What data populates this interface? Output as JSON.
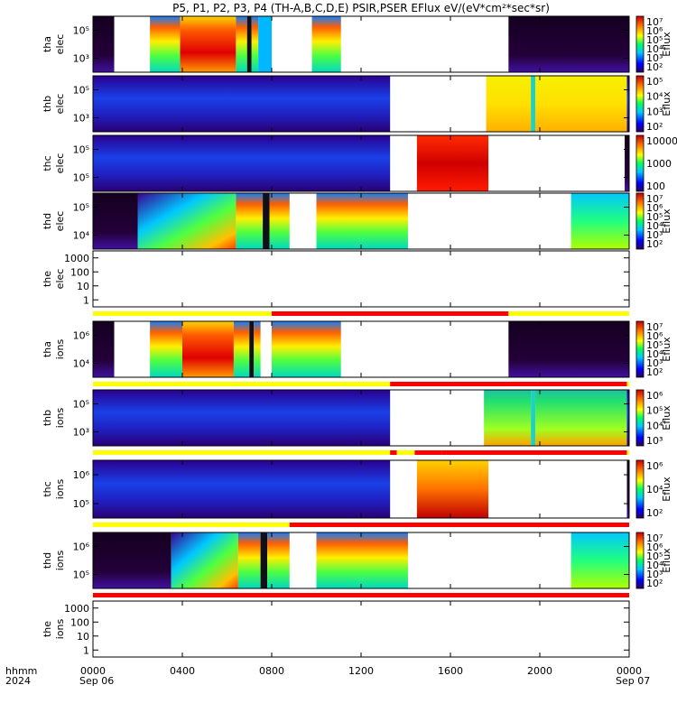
{
  "chart_data": {
    "type": "heatmap",
    "title": "P5, P1, P2, P3, P4 (TH-A,B,C,D,E) PSIR,PSER EFlux eV/(eV*cm²*sec*sr)",
    "x_axis": {
      "label_lines": [
        "hhmm",
        "2024"
      ],
      "ticks": [
        "0000",
        "0400",
        "0800",
        "1200",
        "1600",
        "2000",
        "0000"
      ],
      "tick_hours": [
        0,
        4,
        8,
        12,
        16,
        20,
        24
      ],
      "date_labels": [
        "Sep 06",
        "Sep 07"
      ],
      "range_hours": [
        0,
        24
      ]
    },
    "panels": [
      {
        "id": "tha-elec",
        "label_lines": [
          "tha",
          "elec"
        ],
        "kind": "spectrogram",
        "y_ticks": [
          "10⁵",
          "10³"
        ],
        "y_log": true,
        "colorbar": {
          "label": "Eflux",
          "ticks": [
            "10⁷",
            "10⁶",
            "10⁵",
            "10⁴",
            "10³",
            "10²"
          ]
        },
        "segments": [
          [
            0,
            0.95,
            "purple"
          ],
          [
            2.55,
            3.9,
            "warm"
          ],
          [
            3.9,
            6.4,
            "hot"
          ],
          [
            6.4,
            6.9,
            "warm"
          ],
          [
            6.9,
            7.1,
            "dark"
          ],
          [
            7.1,
            7.4,
            "warm"
          ],
          [
            7.4,
            8.0,
            "cool"
          ],
          [
            9.8,
            11.1,
            "warm"
          ],
          [
            18.6,
            24,
            "purple"
          ]
        ],
        "flag_bar": null
      },
      {
        "id": "thb-elec",
        "label_lines": [
          "thb",
          "elec"
        ],
        "kind": "spectrogram",
        "y_ticks": [
          "10⁵",
          "10³"
        ],
        "y_log": true,
        "colorbar": {
          "label": "Eflux",
          "ticks": [
            "10⁵",
            "10⁴",
            "10³",
            "10²"
          ]
        },
        "segments": [
          [
            0,
            13.3,
            "blue"
          ],
          [
            17.6,
            19.6,
            "yellow"
          ],
          [
            19.6,
            19.8,
            "cyanstripe"
          ],
          [
            19.8,
            23.9,
            "yellow"
          ],
          [
            23.9,
            24,
            "blue"
          ]
        ],
        "flag_bar": null
      },
      {
        "id": "thc-elec",
        "label_lines": [
          "thc",
          "elec"
        ],
        "kind": "spectrogram",
        "y_ticks": [
          "10⁵",
          "10⁵"
        ],
        "y_log": true,
        "colorbar": {
          "label": "",
          "ticks": [
            "10000",
            "1000",
            "100"
          ]
        },
        "segments": [
          [
            0,
            13.3,
            "blue"
          ],
          [
            14.5,
            17.7,
            "red"
          ],
          [
            23.8,
            24,
            "purple"
          ]
        ],
        "flag_bar": null
      },
      {
        "id": "thd-elec",
        "label_lines": [
          "thd",
          "elec"
        ],
        "kind": "spectrogram",
        "y_ticks": [
          "10⁵",
          "10⁴"
        ],
        "y_log": true,
        "colorbar": {
          "label": "Eflux",
          "ticks": [
            "10⁷",
            "10⁶",
            "10⁵",
            "10⁴",
            "10³",
            "10²"
          ]
        },
        "segments": [
          [
            0,
            2.0,
            "purple"
          ],
          [
            2.0,
            6.4,
            "ramp"
          ],
          [
            6.4,
            7.6,
            "warm"
          ],
          [
            7.6,
            7.9,
            "dark"
          ],
          [
            7.9,
            8.8,
            "warm"
          ],
          [
            10.0,
            14.1,
            "warm"
          ],
          [
            21.4,
            24,
            "cyangreen"
          ]
        ],
        "flag_bar": null
      },
      {
        "id": "the-elec",
        "label_lines": [
          "the",
          "elec"
        ],
        "kind": "empty",
        "y_ticks": [
          "1000",
          "100",
          "10",
          "1"
        ],
        "y_log": true,
        "colorbar": null,
        "segments": [],
        "flag_bar": [
          [
            0,
            6.4,
            "yellow"
          ],
          [
            6.4,
            8.0,
            "yellow"
          ],
          [
            8.0,
            18.6,
            "red"
          ],
          [
            18.6,
            24,
            "yellow"
          ]
        ]
      },
      {
        "id": "tha-ions",
        "label_lines": [
          "tha",
          "ions"
        ],
        "kind": "spectrogram",
        "y_ticks": [
          "10⁶",
          "10⁴"
        ],
        "y_log": true,
        "colorbar": {
          "label": "Eflux",
          "ticks": [
            "10⁷",
            "10⁶",
            "10⁵",
            "10⁴",
            "10³",
            "10²"
          ]
        },
        "segments": [
          [
            0,
            0.95,
            "purple"
          ],
          [
            2.55,
            4.0,
            "warm"
          ],
          [
            4.0,
            6.3,
            "hot"
          ],
          [
            6.3,
            7.0,
            "warm"
          ],
          [
            7.0,
            7.2,
            "dark"
          ],
          [
            7.2,
            7.5,
            "warm"
          ],
          [
            8.0,
            11.1,
            "warm"
          ],
          [
            18.6,
            24,
            "purple"
          ]
        ],
        "flag_bar": [
          [
            0,
            13.3,
            "yellow"
          ],
          [
            13.3,
            23.9,
            "red"
          ],
          [
            23.9,
            24,
            "yellow"
          ]
        ]
      },
      {
        "id": "thb-ions",
        "label_lines": [
          "thb",
          "ions"
        ],
        "kind": "spectrogram",
        "y_ticks": [
          "10⁵",
          "10³"
        ],
        "y_log": true,
        "colorbar": {
          "label": "Eflux",
          "ticks": [
            "10⁶",
            "10⁵",
            "10⁴",
            "10³"
          ]
        },
        "segments": [
          [
            0,
            13.3,
            "blue"
          ],
          [
            17.5,
            19.6,
            "greenyellow"
          ],
          [
            19.6,
            19.8,
            "cyanstripe"
          ],
          [
            19.8,
            23.9,
            "greenyellow"
          ],
          [
            23.9,
            24,
            "blue"
          ]
        ],
        "flag_bar": [
          [
            0,
            13.3,
            "yellow"
          ],
          [
            13.3,
            13.6,
            "red"
          ],
          [
            13.6,
            14.4,
            "yellow"
          ],
          [
            14.4,
            15.6,
            "red"
          ],
          [
            15.6,
            23.9,
            "red"
          ],
          [
            23.9,
            24,
            "yellow"
          ]
        ]
      },
      {
        "id": "thc-ions",
        "label_lines": [
          "thc",
          "ions"
        ],
        "kind": "spectrogram",
        "y_ticks": [
          "10⁶",
          "10⁵"
        ],
        "y_log": true,
        "colorbar": {
          "label": "Eflux",
          "ticks": [
            "10⁶",
            "10⁴",
            "10²"
          ]
        },
        "segments": [
          [
            0,
            13.3,
            "blue"
          ],
          [
            14.5,
            17.7,
            "orangered"
          ],
          [
            23.9,
            24,
            "purple"
          ]
        ],
        "flag_bar": [
          [
            0,
            8.8,
            "yellow"
          ],
          [
            8.8,
            24,
            "red"
          ]
        ]
      },
      {
        "id": "thd-ions",
        "label_lines": [
          "thd",
          "ions"
        ],
        "kind": "spectrogram",
        "y_ticks": [
          "10⁶",
          "10⁵"
        ],
        "y_log": true,
        "colorbar": {
          "label": "Eflux",
          "ticks": [
            "10⁷",
            "10⁶",
            "10⁵",
            "10⁴",
            "10³",
            "10²"
          ]
        },
        "segments": [
          [
            0,
            3.5,
            "purple"
          ],
          [
            3.5,
            6.5,
            "ramp"
          ],
          [
            6.5,
            7.5,
            "warm"
          ],
          [
            7.5,
            7.8,
            "dark"
          ],
          [
            7.8,
            8.8,
            "warm"
          ],
          [
            10.0,
            14.1,
            "warm"
          ],
          [
            21.4,
            24,
            "cyangreen"
          ]
        ],
        "flag_bar": [
          [
            0,
            24,
            "red"
          ]
        ]
      },
      {
        "id": "the-ions",
        "label_lines": [
          "the",
          "ions"
        ],
        "kind": "empty",
        "y_ticks": [
          "1000",
          "100",
          "10",
          "1"
        ],
        "y_log": true,
        "colorbar": null,
        "segments": [],
        "flag_bar": null
      }
    ]
  }
}
